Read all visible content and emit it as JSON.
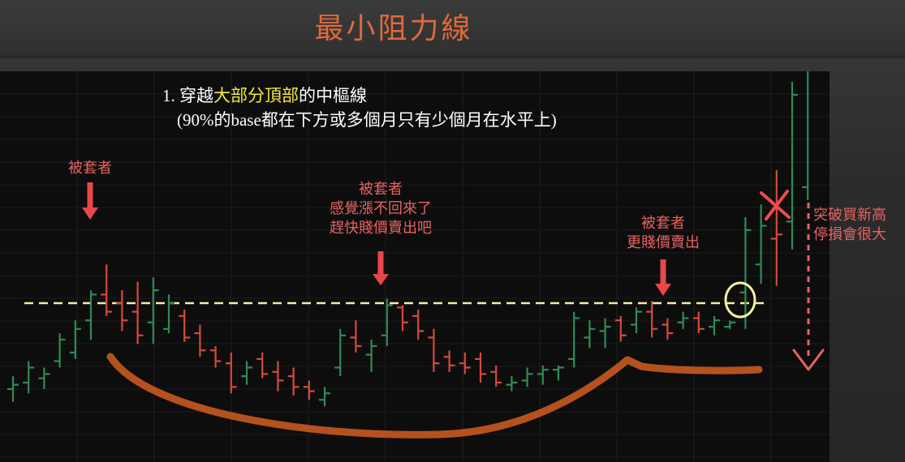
{
  "slide": {
    "title": "最小阻力線"
  },
  "notes": {
    "line1_prefix": "1. 穿越",
    "line1_highlight": "大部分頂部",
    "line1_suffix": "的中樞線",
    "line2": "(90%的base都在下方或多個月只有少個月在水平上)"
  },
  "annotations": {
    "left": [
      "被套者"
    ],
    "middle": [
      "被套者",
      "感覺漲不回來了",
      "趕快賤價賣出吧"
    ],
    "right": [
      "被套者",
      "更賤價賣出"
    ],
    "far_right": [
      "突破買新高",
      "停損會很大"
    ]
  },
  "colors": {
    "up_bar": "#2e8b57",
    "down_bar": "#d64a3a",
    "pivot_line": "#f3f0a0",
    "base_curve": "#b5511f",
    "annotation": "#e86262",
    "highlight": "#f5e93a",
    "title": "#e0693a"
  },
  "chart_data": {
    "type": "ohlc",
    "pivot_level": 70,
    "ylim": [
      0,
      100
    ],
    "bars": [
      {
        "o": 30,
        "h": 36,
        "l": 24,
        "c": 32,
        "dir": "up"
      },
      {
        "o": 33,
        "h": 43,
        "l": 28,
        "c": 40,
        "dir": "up"
      },
      {
        "o": 35,
        "h": 40,
        "l": 30,
        "c": 37,
        "dir": "up"
      },
      {
        "o": 43,
        "h": 56,
        "l": 40,
        "c": 53,
        "dir": "up"
      },
      {
        "o": 47,
        "h": 62,
        "l": 44,
        "c": 58,
        "dir": "up"
      },
      {
        "o": 62,
        "h": 76,
        "l": 53,
        "c": 74,
        "dir": "up"
      },
      {
        "o": 74,
        "h": 88,
        "l": 64,
        "c": 66,
        "dir": "down"
      },
      {
        "o": 70,
        "h": 76,
        "l": 57,
        "c": 62,
        "dir": "down"
      },
      {
        "o": 66,
        "h": 80,
        "l": 51,
        "c": 55,
        "dir": "down"
      },
      {
        "o": 61,
        "h": 82,
        "l": 51,
        "c": 76,
        "dir": "up"
      },
      {
        "o": 58,
        "h": 74,
        "l": 56,
        "c": 70,
        "dir": "up"
      },
      {
        "o": 64,
        "h": 67,
        "l": 52,
        "c": 54,
        "dir": "down"
      },
      {
        "o": 56,
        "h": 60,
        "l": 45,
        "c": 48,
        "dir": "down"
      },
      {
        "o": 48,
        "h": 50,
        "l": 40,
        "c": 43,
        "dir": "down"
      },
      {
        "o": 42,
        "h": 47,
        "l": 28,
        "c": 31,
        "dir": "down"
      },
      {
        "o": 36,
        "h": 43,
        "l": 32,
        "c": 40,
        "dir": "up"
      },
      {
        "o": 44,
        "h": 47,
        "l": 35,
        "c": 37,
        "dir": "down"
      },
      {
        "o": 38,
        "h": 43,
        "l": 29,
        "c": 34,
        "dir": "down"
      },
      {
        "o": 36,
        "h": 40,
        "l": 27,
        "c": 31,
        "dir": "down"
      },
      {
        "o": 31,
        "h": 34,
        "l": 25,
        "c": 29,
        "dir": "down"
      },
      {
        "o": 25,
        "h": 31,
        "l": 22,
        "c": 28,
        "dir": "up"
      },
      {
        "o": 40,
        "h": 58,
        "l": 36,
        "c": 55,
        "dir": "up"
      },
      {
        "o": 54,
        "h": 62,
        "l": 47,
        "c": 50,
        "dir": "down"
      },
      {
        "o": 46,
        "h": 53,
        "l": 38,
        "c": 50,
        "dir": "up"
      },
      {
        "o": 55,
        "h": 72,
        "l": 50,
        "c": 69,
        "dir": "up"
      },
      {
        "o": 68,
        "h": 69,
        "l": 57,
        "c": 61,
        "dir": "down"
      },
      {
        "o": 64,
        "h": 67,
        "l": 53,
        "c": 57,
        "dir": "down"
      },
      {
        "o": 54,
        "h": 58,
        "l": 38,
        "c": 42,
        "dir": "down"
      },
      {
        "o": 45,
        "h": 48,
        "l": 38,
        "c": 41,
        "dir": "down"
      },
      {
        "o": 42,
        "h": 47,
        "l": 37,
        "c": 40,
        "dir": "down"
      },
      {
        "o": 44,
        "h": 47,
        "l": 33,
        "c": 37,
        "dir": "down"
      },
      {
        "o": 38,
        "h": 41,
        "l": 31,
        "c": 33,
        "dir": "down"
      },
      {
        "o": 32,
        "h": 36,
        "l": 29,
        "c": 33,
        "dir": "up"
      },
      {
        "o": 34,
        "h": 40,
        "l": 31,
        "c": 37,
        "dir": "up"
      },
      {
        "o": 37,
        "h": 41,
        "l": 32,
        "c": 39,
        "dir": "up"
      },
      {
        "o": 39,
        "h": 41,
        "l": 34,
        "c": 40,
        "dir": "up"
      },
      {
        "o": 44,
        "h": 66,
        "l": 40,
        "c": 63,
        "dir": "up"
      },
      {
        "o": 54,
        "h": 62,
        "l": 49,
        "c": 58,
        "dir": "up"
      },
      {
        "o": 57,
        "h": 63,
        "l": 49,
        "c": 59,
        "dir": "up"
      },
      {
        "o": 62,
        "h": 64,
        "l": 52,
        "c": 55,
        "dir": "down"
      },
      {
        "o": 60,
        "h": 68,
        "l": 56,
        "c": 66,
        "dir": "up"
      },
      {
        "o": 66,
        "h": 71,
        "l": 54,
        "c": 58,
        "dir": "down"
      },
      {
        "o": 60,
        "h": 63,
        "l": 53,
        "c": 56,
        "dir": "down"
      },
      {
        "o": 61,
        "h": 66,
        "l": 58,
        "c": 63,
        "dir": "up"
      },
      {
        "o": 63,
        "h": 66,
        "l": 56,
        "c": 58,
        "dir": "down"
      },
      {
        "o": 59,
        "h": 64,
        "l": 55,
        "c": 62,
        "dir": "up"
      },
      {
        "o": 59,
        "h": 62,
        "l": 58,
        "c": 61,
        "dir": "up"
      },
      {
        "o": 75,
        "h": 110,
        "l": 58,
        "c": 104,
        "dir": "up"
      },
      {
        "o": 88,
        "h": 116,
        "l": 79,
        "c": 106,
        "dir": "up"
      },
      {
        "o": 100,
        "h": 132,
        "l": 78,
        "c": 102,
        "dir": "down"
      },
      {
        "o": 108,
        "h": 173,
        "l": 95,
        "c": 167,
        "dir": "up"
      },
      {
        "o": 124,
        "h": 195,
        "l": 118,
        "c": 187,
        "dir": "up"
      }
    ]
  }
}
